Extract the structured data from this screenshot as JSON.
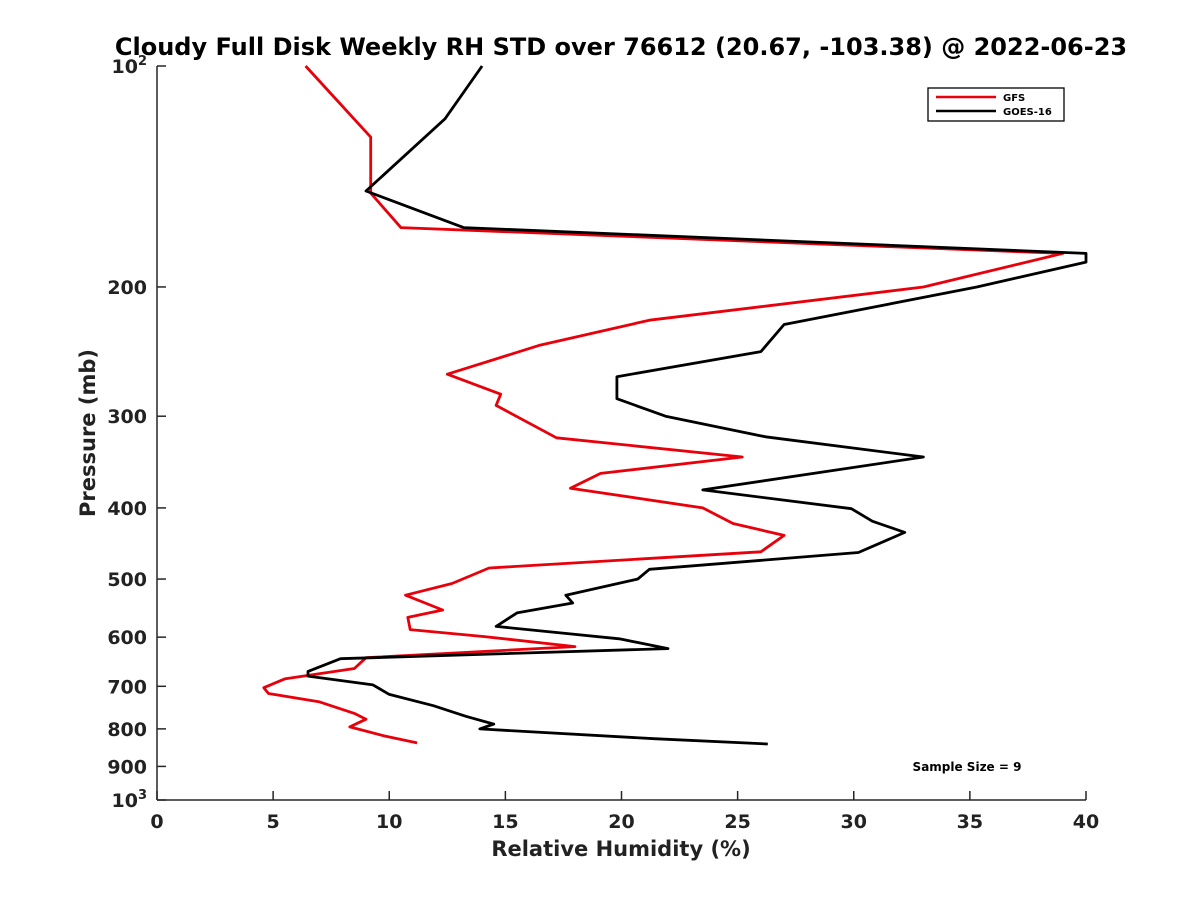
{
  "chart_data": {
    "type": "line",
    "title": "Cloudy Full Disk Weekly RH STD over 76612 (20.67, -103.38) @ 2022-06-23",
    "xlabel": "Relative Humidity (%)",
    "ylabel": "Pressure (mb)",
    "xlim": [
      0,
      40
    ],
    "ylim": [
      100,
      1000
    ],
    "yscale": "log",
    "y_inverted": true,
    "x_ticks": [
      "0",
      "5",
      "10",
      "15",
      "20",
      "25",
      "30",
      "35",
      "40"
    ],
    "y_ticks": [
      {
        "value": 100,
        "label": "10",
        "sup": "2"
      },
      {
        "value": 200,
        "label": "200"
      },
      {
        "value": 300,
        "label": "300"
      },
      {
        "value": 400,
        "label": "400"
      },
      {
        "value": 500,
        "label": "500"
      },
      {
        "value": 600,
        "label": "600"
      },
      {
        "value": 700,
        "label": "700"
      },
      {
        "value": 800,
        "label": "800"
      },
      {
        "value": 900,
        "label": "900"
      },
      {
        "value": 1000,
        "label": "10",
        "sup": "3"
      }
    ],
    "legend_position": "top-right",
    "annotation": "Sample Size = 9",
    "series": [
      {
        "name": "GFS",
        "color": "#e8000b",
        "points": [
          [
            6.4,
            100
          ],
          [
            9.2,
            125
          ],
          [
            9.2,
            149
          ],
          [
            10.5,
            166
          ],
          [
            39.0,
            180
          ],
          [
            33.0,
            200
          ],
          [
            21.2,
            222
          ],
          [
            16.5,
            240
          ],
          [
            12.5,
            263
          ],
          [
            14.8,
            280
          ],
          [
            14.6,
            290
          ],
          [
            17.2,
            321
          ],
          [
            25.2,
            341
          ],
          [
            19.1,
            359
          ],
          [
            17.8,
            376
          ],
          [
            23.5,
            400
          ],
          [
            24.8,
            420
          ],
          [
            27.0,
            436
          ],
          [
            26.0,
            459
          ],
          [
            14.3,
            483
          ],
          [
            12.7,
            507
          ],
          [
            10.7,
            526
          ],
          [
            12.3,
            551
          ],
          [
            10.8,
            564
          ],
          [
            10.9,
            586
          ],
          [
            14.1,
            599
          ],
          [
            18.0,
            618
          ],
          [
            9.0,
            640
          ],
          [
            8.5,
            662
          ],
          [
            5.5,
            684
          ],
          [
            4.6,
            703
          ],
          [
            4.8,
            716
          ],
          [
            7.0,
            735
          ],
          [
            8.5,
            762
          ],
          [
            9.0,
            776
          ],
          [
            8.3,
            795
          ],
          [
            9.8,
            818
          ],
          [
            11.2,
            836
          ]
        ]
      },
      {
        "name": "GOES-16",
        "color": "#000000",
        "points": [
          [
            14.0,
            100
          ],
          [
            12.4,
            118
          ],
          [
            9.0,
            148
          ],
          [
            13.2,
            166
          ],
          [
            40.0,
            180
          ],
          [
            40.0,
            185
          ],
          [
            35.3,
            200
          ],
          [
            27.0,
            225
          ],
          [
            26.0,
            245
          ],
          [
            19.8,
            265
          ],
          [
            19.8,
            284
          ],
          [
            21.9,
            300
          ],
          [
            26.2,
            320
          ],
          [
            33.0,
            341
          ],
          [
            23.5,
            378
          ],
          [
            29.9,
            401
          ],
          [
            30.8,
            417
          ],
          [
            32.2,
            432
          ],
          [
            30.2,
            460
          ],
          [
            21.2,
            485
          ],
          [
            20.7,
            500
          ],
          [
            17.6,
            526
          ],
          [
            17.9,
            539
          ],
          [
            15.5,
            556
          ],
          [
            14.6,
            580
          ],
          [
            19.9,
            603
          ],
          [
            22.0,
            622
          ],
          [
            7.9,
            642
          ],
          [
            6.5,
            668
          ],
          [
            6.5,
            678
          ],
          [
            9.3,
            697
          ],
          [
            9.6,
            706
          ],
          [
            10.0,
            718
          ],
          [
            11.9,
            744
          ],
          [
            13.3,
            769
          ],
          [
            14.5,
            788
          ],
          [
            14.2,
            794
          ],
          [
            13.9,
            800
          ],
          [
            21.4,
            825
          ],
          [
            26.3,
            839
          ]
        ]
      }
    ]
  }
}
